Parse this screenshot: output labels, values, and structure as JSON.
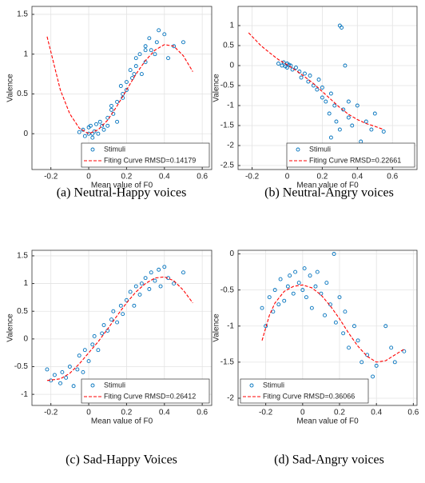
{
  "chart_data": [
    {
      "type": "scatter",
      "caption": "(a) Neutral-Happy voices",
      "xlabel": "Mean value of F0",
      "ylabel": "Valence",
      "xlim": [
        -0.3,
        0.65
      ],
      "ylim": [
        -0.45,
        1.6
      ],
      "xticks": [
        -0.2,
        0,
        0.2,
        0.4,
        0.6
      ],
      "yticks": [
        0,
        0.5,
        1,
        1.5
      ],
      "grid": true,
      "legend": "lower right",
      "series": [
        {
          "name": "Stimuli",
          "color": "#0072bd",
          "style": "marker",
          "x": [
            -0.05,
            -0.03,
            -0.02,
            0,
            0,
            0.01,
            0.02,
            0.03,
            0.04,
            0.05,
            0.06,
            0.08,
            0.1,
            0.1,
            0.12,
            0.13,
            0.15,
            0.15,
            0.17,
            0.18,
            0.2,
            0.2,
            0.22,
            0.23,
            0.25,
            0.25,
            0.27,
            0.28,
            0.3,
            0.3,
            0.32,
            0.33,
            0.35,
            0.37,
            0.4,
            0.42,
            0.45,
            0.5,
            0.02,
            0.07,
            0.12,
            0.18,
            0.24,
            0.3,
            0.36
          ],
          "values": [
            0.02,
            0.05,
            -0.03,
            0.08,
            0,
            0.1,
            -0.05,
            0.03,
            0.12,
            0.0,
            0.15,
            0.05,
            0.2,
            0.1,
            0.35,
            0.25,
            0.4,
            0.15,
            0.6,
            0.45,
            0.65,
            0.55,
            0.8,
            0.7,
            0.95,
            0.85,
            1.0,
            0.75,
            1.1,
            0.9,
            1.2,
            1.05,
            1.0,
            1.3,
            1.25,
            0.95,
            1.1,
            1.15,
            0.0,
            0.1,
            0.3,
            0.5,
            0.75,
            1.05,
            1.15
          ]
        },
        {
          "name": "Fiting Curve RMSD=0.14179",
          "color": "#ff0000",
          "style": "dashed",
          "x": [
            -0.22,
            -0.15,
            -0.1,
            -0.05,
            0,
            0.05,
            0.1,
            0.15,
            0.2,
            0.25,
            0.3,
            0.35,
            0.4,
            0.45,
            0.5,
            0.55
          ],
          "values": [
            1.22,
            0.55,
            0.25,
            0.07,
            0.0,
            0.05,
            0.17,
            0.35,
            0.55,
            0.75,
            0.92,
            1.05,
            1.12,
            1.1,
            0.98,
            0.78
          ]
        }
      ]
    },
    {
      "type": "scatter",
      "caption": "(b) Neutral-Angry voices",
      "xlabel": "Mean value of F0",
      "ylabel": "Valence",
      "xlim": [
        -0.28,
        0.74
      ],
      "ylim": [
        -2.6,
        1.48
      ],
      "xticks": [
        -0.2,
        0,
        0.2,
        0.4,
        0.6
      ],
      "yticks": [
        -2.5,
        -2,
        -1.5,
        -1,
        -0.5,
        0,
        0.5,
        1
      ],
      "grid": true,
      "legend": "lower right",
      "series": [
        {
          "name": "Stimuli",
          "color": "#0072bd",
          "style": "marker",
          "x": [
            -0.05,
            -0.03,
            -0.02,
            -0.01,
            0,
            0,
            0.01,
            0.02,
            0.03,
            0.05,
            0.07,
            0.08,
            0.1,
            0.12,
            0.13,
            0.15,
            0.17,
            0.18,
            0.2,
            0.2,
            0.22,
            0.24,
            0.25,
            0.27,
            0.28,
            0.3,
            0.3,
            0.31,
            0.32,
            0.33,
            0.35,
            0.37,
            0.4,
            0.42,
            0.45,
            0.48,
            0.5,
            0.55,
            0.25,
            0.35
          ],
          "values": [
            0.05,
            0,
            0.08,
            -0.02,
            0.05,
            -0.05,
            0.02,
            0,
            -0.1,
            -0.05,
            -0.15,
            -0.3,
            -0.2,
            -0.4,
            -0.25,
            -0.5,
            -0.6,
            -0.35,
            -0.8,
            -0.55,
            -0.9,
            -1.2,
            -0.7,
            -1.0,
            -1.4,
            1.0,
            -1.6,
            0.95,
            -1.1,
            0.0,
            -1.3,
            -1.5,
            -1.0,
            -1.9,
            -1.4,
            -1.6,
            -1.2,
            -1.65,
            -1.8,
            -0.9
          ]
        },
        {
          "name": "Fiting Curve RMSD=0.22661",
          "color": "#ff0000",
          "style": "dashed",
          "x": [
            -0.22,
            -0.15,
            -0.1,
            -0.05,
            0,
            0.05,
            0.1,
            0.15,
            0.2,
            0.25,
            0.3,
            0.35,
            0.4,
            0.45,
            0.5,
            0.55
          ],
          "values": [
            0.82,
            0.5,
            0.32,
            0.15,
            0.02,
            -0.12,
            -0.28,
            -0.45,
            -0.65,
            -0.85,
            -1.05,
            -1.22,
            -1.35,
            -1.45,
            -1.52,
            -1.6
          ]
        }
      ]
    },
    {
      "type": "scatter",
      "caption": "(c) Sad-Happy Voices",
      "xlabel": "Mean value of F0",
      "ylabel": "Valence",
      "xlim": [
        -0.3,
        0.65
      ],
      "ylim": [
        -1.2,
        1.6
      ],
      "xticks": [
        -0.2,
        0,
        0.2,
        0.4,
        0.6
      ],
      "yticks": [
        -1,
        -0.5,
        0,
        0.5,
        1,
        1.5
      ],
      "grid": true,
      "legend": "lower right",
      "series": [
        {
          "name": "Stimuli",
          "color": "#0072bd",
          "style": "marker",
          "x": [
            -0.22,
            -0.2,
            -0.18,
            -0.15,
            -0.14,
            -0.12,
            -0.1,
            -0.08,
            -0.06,
            -0.05,
            -0.03,
            -0.02,
            0,
            0.02,
            0.03,
            0.05,
            0.07,
            0.08,
            0.1,
            0.12,
            0.13,
            0.15,
            0.17,
            0.18,
            0.2,
            0.22,
            0.24,
            0.25,
            0.27,
            0.28,
            0.3,
            0.32,
            0.33,
            0.35,
            0.37,
            0.38,
            0.4,
            0.42,
            0.45,
            0.5
          ],
          "values": [
            -0.55,
            -0.75,
            -0.65,
            -0.8,
            -0.6,
            -0.7,
            -0.5,
            -0.85,
            -0.55,
            -0.3,
            -0.6,
            -0.2,
            -0.4,
            -0.1,
            0.05,
            -0.2,
            0.1,
            0.25,
            0.15,
            0.35,
            0.5,
            0.3,
            0.6,
            0.45,
            0.7,
            0.85,
            0.6,
            0.95,
            0.8,
            1.0,
            1.1,
            0.9,
            1.2,
            1.05,
            1.25,
            0.95,
            1.3,
            1.1,
            1.0,
            1.2
          ]
        },
        {
          "name": "Fiting Curve RMSD=0.26412",
          "color": "#ff0000",
          "style": "dashed",
          "x": [
            -0.22,
            -0.15,
            -0.1,
            -0.05,
            0,
            0.05,
            0.1,
            0.15,
            0.2,
            0.25,
            0.3,
            0.35,
            0.4,
            0.45,
            0.5,
            0.55
          ],
          "values": [
            -0.75,
            -0.72,
            -0.62,
            -0.45,
            -0.25,
            -0.05,
            0.18,
            0.42,
            0.65,
            0.85,
            1.0,
            1.1,
            1.12,
            1.05,
            0.88,
            0.65
          ]
        }
      ]
    },
    {
      "type": "scatter",
      "caption": "(d) Sad-Angry voices",
      "xlabel": "Mean value of F0",
      "ylabel": "Valence",
      "xlim": [
        -0.35,
        0.62
      ],
      "ylim": [
        -2.1,
        0.05
      ],
      "xticks": [
        -0.2,
        0,
        0.2,
        0.4,
        0.6
      ],
      "yticks": [
        -2,
        -1.5,
        -1,
        -0.5,
        0
      ],
      "grid": true,
      "legend": "lower left",
      "series": [
        {
          "name": "Stimuli",
          "color": "#0072bd",
          "style": "marker",
          "x": [
            -0.22,
            -0.2,
            -0.18,
            -0.16,
            -0.15,
            -0.13,
            -0.12,
            -0.1,
            -0.08,
            -0.07,
            -0.05,
            -0.04,
            -0.02,
            0,
            0.01,
            0.02,
            0.04,
            0.05,
            0.07,
            0.08,
            0.1,
            0.12,
            0.13,
            0.15,
            0.17,
            0.18,
            0.2,
            0.22,
            0.23,
            0.25,
            0.28,
            0.3,
            0.32,
            0.35,
            0.38,
            0.4,
            0.45,
            0.48,
            0.5,
            0.55
          ],
          "values": [
            -0.75,
            -1.0,
            -0.6,
            -0.8,
            -0.5,
            -0.7,
            -0.35,
            -0.65,
            -0.45,
            -0.3,
            -0.55,
            -0.25,
            -0.4,
            -0.5,
            -0.2,
            -0.6,
            -0.3,
            -0.75,
            -0.45,
            -0.25,
            -0.55,
            -0.85,
            -0.4,
            -0.7,
            0.0,
            -0.95,
            -0.6,
            -1.1,
            -0.8,
            -1.3,
            -1.0,
            -1.2,
            -1.5,
            -1.4,
            -1.7,
            -1.55,
            -1.0,
            -1.3,
            -1.5,
            -1.35
          ]
        },
        {
          "name": "Fiting Curve RMSD=0.36066",
          "color": "#ff0000",
          "style": "dashed",
          "x": [
            -0.22,
            -0.18,
            -0.15,
            -0.1,
            -0.05,
            0,
            0.05,
            0.1,
            0.15,
            0.2,
            0.25,
            0.3,
            0.35,
            0.4,
            0.45,
            0.5,
            0.55
          ],
          "values": [
            -1.2,
            -0.85,
            -0.68,
            -0.52,
            -0.45,
            -0.43,
            -0.47,
            -0.57,
            -0.72,
            -0.9,
            -1.1,
            -1.28,
            -1.42,
            -1.5,
            -1.48,
            -1.4,
            -1.32
          ]
        }
      ]
    }
  ]
}
